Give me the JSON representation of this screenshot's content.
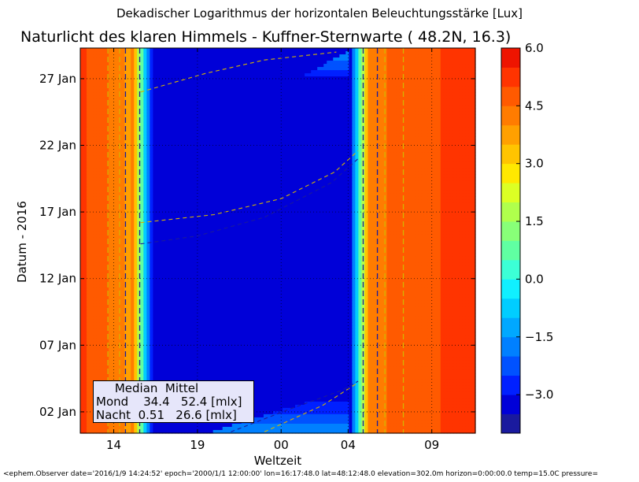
{
  "suptitle": "Dekadischer Logarithmus der horizontalen Beleuchtungsstärke [Lux]",
  "title": "Naturlicht des klaren Himmels - Kuffner-Sternwarte ( 48.2N, 16.3)",
  "footer": "<ephem.Observer date='2016/1/9 14:24:52' epoch='2000/1/1 12:00:00' lon=16:17:48.0 lat=48:12:48.0 elevation=302.0m horizon=0:00:00.0 temp=15.0C pressure=",
  "legend": {
    "header": "     Median  Mittel",
    "rows": [
      "Mond    34.4   52.4 [mlx]",
      "Nacht  0.51   26.6 [mlx]"
    ]
  },
  "chart_data": {
    "type": "heatmap",
    "xlabel": "Weltzeit",
    "ylabel": "Datum - 2016",
    "x_ticks": [
      "14",
      "19",
      "00",
      "04",
      "09"
    ],
    "y_ticks": [
      "02 Jan",
      "07 Jan",
      "12 Jan",
      "17 Jan",
      "22 Jan",
      "27 Jan"
    ],
    "colorbar_ticks": [
      "6.0",
      "4.5",
      "3.0",
      "1.5",
      "0.0",
      "−1.5",
      "−3.0"
    ],
    "value_range": [
      -4.0,
      6.0
    ],
    "levels": [
      -4.0,
      -3.5,
      -3.0,
      -2.5,
      -2.0,
      -1.5,
      -1.0,
      -0.5,
      0.0,
      0.5,
      1.0,
      1.5,
      2.0,
      2.5,
      3.0,
      3.5,
      4.0,
      4.5,
      5.0,
      5.5,
      6.0
    ],
    "colors": [
      "#1a1a9e",
      "#0000d8",
      "#0020ff",
      "#0052ff",
      "#0080ff",
      "#00a8ff",
      "#00cdff",
      "#10f0ff",
      "#3cffd6",
      "#60ffa2",
      "#88ff78",
      "#b0ff4c",
      "#dcff24",
      "#ffe800",
      "#ffc400",
      "#ffa000",
      "#ff7c00",
      "#ff5a00",
      "#ff3400",
      "#ee1400",
      "#a81818"
    ],
    "grid": true,
    "contour_lines": "dashed",
    "day_value": 4.8,
    "night_value": -3.5,
    "moon_lit_value": -1.6,
    "moon_bright_value": -0.8
  }
}
